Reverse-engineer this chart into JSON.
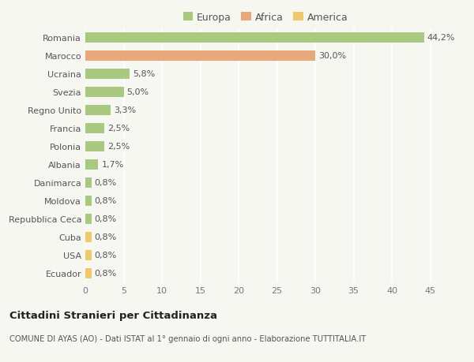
{
  "countries": [
    "Romania",
    "Marocco",
    "Ucraina",
    "Svezia",
    "Regno Unito",
    "Francia",
    "Polonia",
    "Albania",
    "Danimarca",
    "Moldova",
    "Repubblica Ceca",
    "Cuba",
    "USA",
    "Ecuador"
  ],
  "values": [
    44.2,
    30.0,
    5.8,
    5.0,
    3.3,
    2.5,
    2.5,
    1.7,
    0.8,
    0.8,
    0.8,
    0.8,
    0.8,
    0.8
  ],
  "labels": [
    "44,2%",
    "30,0%",
    "5,8%",
    "5,0%",
    "3,3%",
    "2,5%",
    "2,5%",
    "1,7%",
    "0,8%",
    "0,8%",
    "0,8%",
    "0,8%",
    "0,8%",
    "0,8%"
  ],
  "categories": [
    "Europa",
    "Africa",
    "Europa",
    "Europa",
    "Europa",
    "Europa",
    "Europa",
    "Europa",
    "Europa",
    "Europa",
    "Europa",
    "America",
    "America",
    "America"
  ],
  "colors": {
    "Europa": "#a8c97f",
    "Africa": "#e8a87c",
    "America": "#f0c96e"
  },
  "background_color": "#f7f7f2",
  "grid_color": "#ffffff",
  "title1": "Cittadini Stranieri per Cittadinanza",
  "title2": "COMUNE DI AYAS (AO) - Dati ISTAT al 1° gennaio di ogni anno - Elaborazione TUTTITALIA.IT",
  "xlim": [
    0,
    47
  ],
  "xticks": [
    0,
    5,
    10,
    15,
    20,
    25,
    30,
    35,
    40,
    45
  ],
  "bar_height": 0.55,
  "label_fontsize": 8,
  "tick_fontsize": 8,
  "legend_fontsize": 9
}
